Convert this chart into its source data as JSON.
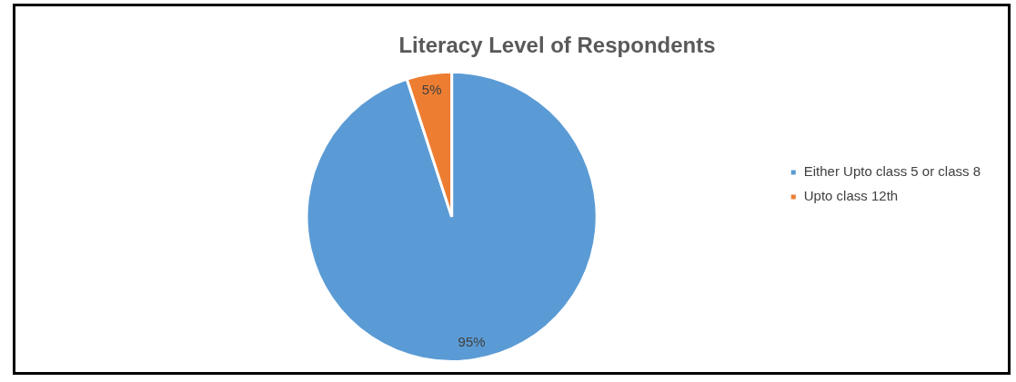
{
  "chart_data": {
    "type": "pie",
    "title": "Literacy Level of Respondents",
    "categories": [
      "Either Upto class 5 or class 8",
      "Upto class 12th"
    ],
    "values": [
      95,
      5
    ],
    "colors": [
      "#5b9bd5",
      "#ed7d31"
    ],
    "value_labels": [
      "95%",
      "5%"
    ],
    "legend": "right"
  }
}
